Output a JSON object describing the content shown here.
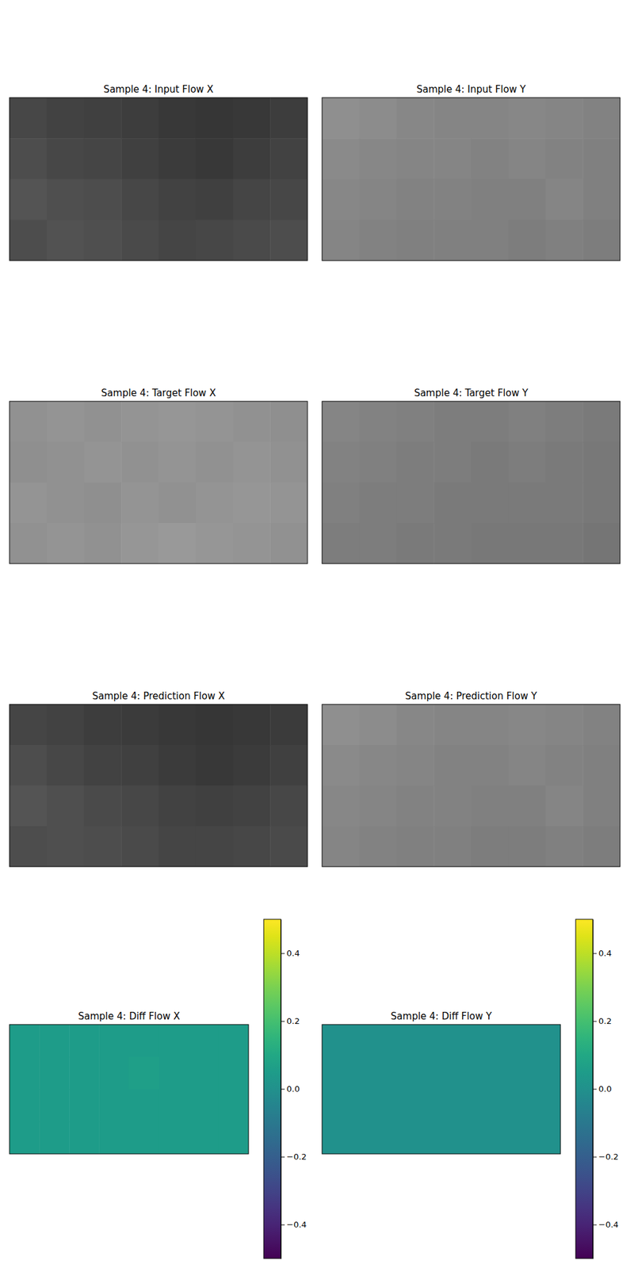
{
  "chart_data": [
    {
      "type": "heatmap",
      "title": "Sample 4: Input Flow X",
      "color": "gray",
      "tick_labels": false,
      "cells": [
        [
          0.28,
          0.26,
          0.25,
          0.24,
          0.22,
          0.21,
          0.22,
          0.24
        ],
        [
          0.3,
          0.28,
          0.27,
          0.25,
          0.23,
          0.22,
          0.24,
          0.26
        ],
        [
          0.33,
          0.31,
          0.3,
          0.28,
          0.26,
          0.25,
          0.27,
          0.28
        ],
        [
          0.3,
          0.32,
          0.31,
          0.29,
          0.27,
          0.28,
          0.29,
          0.3
        ]
      ]
    },
    {
      "type": "heatmap",
      "title": "Sample 4: Input Flow Y",
      "color": "gray",
      "tick_labels": false,
      "cells": [
        [
          0.56,
          0.55,
          0.53,
          0.52,
          0.52,
          0.53,
          0.52,
          0.51
        ],
        [
          0.54,
          0.53,
          0.52,
          0.52,
          0.51,
          0.52,
          0.51,
          0.5
        ],
        [
          0.53,
          0.52,
          0.51,
          0.51,
          0.5,
          0.5,
          0.52,
          0.5
        ],
        [
          0.52,
          0.51,
          0.5,
          0.5,
          0.5,
          0.49,
          0.5,
          0.49
        ]
      ]
    },
    {
      "type": "heatmap",
      "title": "Sample 4: Target Flow X",
      "color": "gray",
      "tick_labels": false,
      "cells": [
        [
          0.57,
          0.58,
          0.57,
          0.58,
          0.59,
          0.58,
          0.57,
          0.56
        ],
        [
          0.56,
          0.57,
          0.58,
          0.57,
          0.58,
          0.57,
          0.58,
          0.57
        ],
        [
          0.58,
          0.57,
          0.56,
          0.58,
          0.57,
          0.58,
          0.59,
          0.58
        ],
        [
          0.57,
          0.58,
          0.57,
          0.59,
          0.6,
          0.59,
          0.58,
          0.57
        ]
      ]
    },
    {
      "type": "heatmap",
      "title": "Sample 4: Target Flow Y",
      "color": "gray",
      "tick_labels": false,
      "cells": [
        [
          0.52,
          0.51,
          0.5,
          0.49,
          0.49,
          0.5,
          0.49,
          0.48
        ],
        [
          0.51,
          0.5,
          0.49,
          0.49,
          0.48,
          0.49,
          0.48,
          0.47
        ],
        [
          0.5,
          0.49,
          0.49,
          0.48,
          0.48,
          0.48,
          0.48,
          0.47
        ],
        [
          0.49,
          0.49,
          0.48,
          0.48,
          0.47,
          0.47,
          0.47,
          0.46
        ]
      ]
    },
    {
      "type": "heatmap",
      "title": "Sample 4: Prediction Flow X",
      "color": "gray",
      "tick_labels": false,
      "cells": [
        [
          0.27,
          0.26,
          0.24,
          0.23,
          0.22,
          0.21,
          0.22,
          0.23
        ],
        [
          0.3,
          0.28,
          0.26,
          0.25,
          0.23,
          0.22,
          0.23,
          0.25
        ],
        [
          0.33,
          0.31,
          0.29,
          0.28,
          0.26,
          0.25,
          0.26,
          0.28
        ],
        [
          0.3,
          0.31,
          0.3,
          0.29,
          0.27,
          0.27,
          0.28,
          0.29
        ]
      ]
    },
    {
      "type": "heatmap",
      "title": "Sample 4: Prediction Flow Y",
      "color": "gray",
      "tick_labels": false,
      "cells": [
        [
          0.56,
          0.55,
          0.53,
          0.52,
          0.52,
          0.53,
          0.52,
          0.51
        ],
        [
          0.54,
          0.53,
          0.52,
          0.51,
          0.51,
          0.52,
          0.51,
          0.5
        ],
        [
          0.53,
          0.52,
          0.51,
          0.51,
          0.5,
          0.5,
          0.52,
          0.5
        ],
        [
          0.52,
          0.51,
          0.5,
          0.5,
          0.49,
          0.49,
          0.5,
          0.49
        ]
      ]
    },
    {
      "type": "heatmap",
      "title": "Sample 4: Diff Flow X",
      "color": "viridis",
      "tick_labels": false,
      "cells": [
        [
          0.05,
          0.05,
          0.05,
          0.05,
          0.05,
          0.05,
          0.05,
          0.05
        ],
        [
          0.05,
          0.05,
          0.05,
          0.05,
          0.06,
          0.05,
          0.05,
          0.05
        ],
        [
          0.05,
          0.05,
          0.05,
          0.05,
          0.05,
          0.05,
          0.05,
          0.05
        ],
        [
          0.05,
          0.05,
          0.05,
          0.05,
          0.05,
          0.05,
          0.05,
          0.05
        ]
      ],
      "color_range": [
        -0.5,
        0.5
      ],
      "color_ticks": [
        {
          "value": -0.4,
          "label": "−0.4"
        },
        {
          "value": -0.2,
          "label": "−0.2"
        },
        {
          "value": 0,
          "label": "0.0"
        },
        0.2,
        0.4
      ]
    },
    {
      "type": "heatmap",
      "title": "Sample 4: Diff Flow Y",
      "color": "viridis",
      "tick_labels": false,
      "cells": [
        [
          0.0,
          0.0,
          0.0,
          0.0,
          0.0,
          0.0,
          0.0,
          0.0
        ],
        [
          0.0,
          0.0,
          0.0,
          0.0,
          0.0,
          0.0,
          0.0,
          0.0
        ],
        [
          0.0,
          0.0,
          0.0,
          0.0,
          0.0,
          0.0,
          0.0,
          0.0
        ],
        [
          0.0,
          0.0,
          0.0,
          0.0,
          0.0,
          0.0,
          0.0,
          0.0
        ]
      ],
      "color_range": [
        -0.5,
        0.5
      ],
      "color_ticks": [
        {
          "value": -0.4,
          "label": "−0.4"
        },
        {
          "value": -0.2,
          "label": "−0.2"
        },
        {
          "value": 0,
          "label": "0.0"
        },
        0.2,
        0.4
      ]
    }
  ]
}
